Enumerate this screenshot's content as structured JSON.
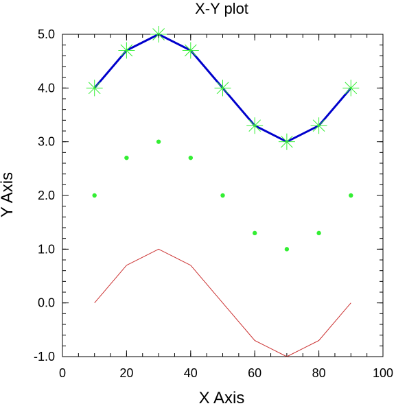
{
  "chart_data": {
    "type": "line",
    "title": "X-Y plot",
    "xlabel": "X Axis",
    "ylabel": "Y Axis",
    "xlim": [
      0,
      100
    ],
    "ylim": [
      -1.0,
      5.0
    ],
    "xticks": [
      0,
      20,
      40,
      60,
      80,
      100
    ],
    "xtick_labels": [
      "0",
      "20",
      "40",
      "60",
      "80",
      "100"
    ],
    "yticks": [
      -1.0,
      0.0,
      1.0,
      2.0,
      3.0,
      4.0,
      5.0
    ],
    "ytick_labels": [
      "-1.0",
      "0.0",
      "1.0",
      "2.0",
      "3.0",
      "4.0",
      "5.0"
    ],
    "grid": false,
    "legend": "none",
    "x": [
      10,
      20,
      30,
      40,
      50,
      60,
      70,
      80,
      90
    ],
    "series": [
      {
        "style": "line+markers",
        "line_color": "#0000cc",
        "marker": "asterisk",
        "marker_color": "#33ee33",
        "values": [
          4.0,
          4.7,
          5.0,
          4.7,
          4.0,
          3.3,
          3.0,
          3.3,
          4.0
        ]
      },
      {
        "style": "markers",
        "marker": "dot",
        "marker_color": "#33ee33",
        "values": [
          2.0,
          2.7,
          3.0,
          2.7,
          2.0,
          1.3,
          1.0,
          1.3,
          2.0
        ]
      },
      {
        "style": "line",
        "line_color": "#cc3333",
        "values": [
          0.0,
          0.7,
          1.0,
          0.7,
          0.0,
          -0.7,
          -1.0,
          -0.7,
          0.0
        ]
      }
    ]
  }
}
